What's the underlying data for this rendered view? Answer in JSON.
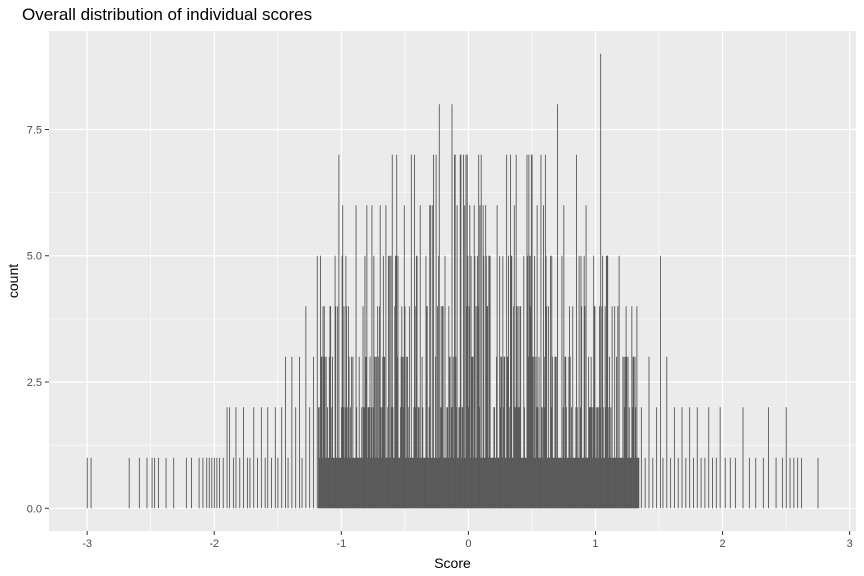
{
  "chart_data": {
    "type": "bar",
    "title": "Overall distribution of individual scores",
    "xlabel": "Score",
    "ylabel": "count",
    "xlim": [
      -3.3,
      3.05
    ],
    "ylim": [
      -0.45,
      9.45
    ],
    "x_ticks": [
      -3,
      -2,
      -1,
      0,
      1,
      2,
      3
    ],
    "x_tick_labels": [
      "-3",
      "-2",
      "-1",
      "0",
      "1",
      "2",
      "3"
    ],
    "y_ticks": [
      0,
      2.5,
      5,
      7.5
    ],
    "y_tick_labels": [
      "0.0",
      "2.5",
      "5.0",
      "7.5"
    ],
    "bin_width": 0.005,
    "grid": true,
    "colors": {
      "panel": "#ebebeb",
      "grid": "#ffffff",
      "bar": "#595959"
    },
    "sparse_bins": {
      "x": [
        -3.0,
        -2.97,
        -2.67,
        -2.59,
        -2.53,
        -2.49,
        -2.47,
        -2.44,
        -2.38,
        -2.32,
        -2.22,
        -2.18,
        -2.12,
        -2.09,
        -2.06,
        -2.04,
        -2.02,
        -2.0,
        -1.98,
        -1.96,
        -1.93,
        -1.9,
        -1.88,
        -1.85,
        -1.83,
        -1.8,
        -1.77,
        -1.74,
        -1.72,
        -1.69,
        -1.66,
        -1.63,
        -1.6,
        -1.58,
        -1.55,
        -1.52,
        -1.5,
        -1.47,
        -1.44,
        -1.42,
        -1.39,
        -1.36,
        -1.33,
        -1.31,
        -1.28,
        -1.25,
        -1.22,
        -1.19
      ],
      "y": [
        1,
        1,
        1,
        1,
        1,
        1,
        1,
        1,
        1,
        1,
        1,
        1,
        1,
        1,
        1,
        1,
        1,
        1,
        1,
        1,
        1,
        2,
        2,
        1,
        2,
        1,
        2,
        1,
        1,
        2,
        1,
        2,
        1,
        2,
        1,
        2,
        1,
        2,
        3,
        1,
        3,
        2,
        3,
        1,
        4,
        2,
        3,
        5
      ]
    },
    "core_range": [
      -1.18,
      1.34
    ],
    "core_envelope": [
      [
        -1.18,
        4.2
      ],
      [
        -1.0,
        5.0
      ],
      [
        -0.8,
        5.6
      ],
      [
        -0.6,
        6.0
      ],
      [
        -0.4,
        6.4
      ],
      [
        -0.2,
        6.8
      ],
      [
        0.0,
        6.9
      ],
      [
        0.2,
        6.8
      ],
      [
        0.4,
        6.5
      ],
      [
        0.6,
        6.2
      ],
      [
        0.8,
        5.6
      ],
      [
        1.0,
        5.0
      ],
      [
        1.2,
        4.1
      ],
      [
        1.34,
        3.6
      ]
    ],
    "peaks": [
      {
        "x": -1.02,
        "y": 7
      },
      {
        "x": -0.99,
        "y": 6
      },
      {
        "x": -0.8,
        "y": 6
      },
      {
        "x": -0.6,
        "y": 7
      },
      {
        "x": -0.45,
        "y": 7
      },
      {
        "x": -0.3,
        "y": 6
      },
      {
        "x": -0.23,
        "y": 8
      },
      {
        "x": -0.13,
        "y": 8
      },
      {
        "x": -0.04,
        "y": 7
      },
      {
        "x": 0.1,
        "y": 7
      },
      {
        "x": 0.3,
        "y": 7
      },
      {
        "x": 0.5,
        "y": 7
      },
      {
        "x": 0.7,
        "y": 8
      },
      {
        "x": 0.85,
        "y": 7
      },
      {
        "x": 1.04,
        "y": 9
      }
    ],
    "right_tail": {
      "x": [
        1.36,
        1.39,
        1.42,
        1.45,
        1.48,
        1.51,
        1.53,
        1.56,
        1.59,
        1.62,
        1.65,
        1.68,
        1.71,
        1.74,
        1.77,
        1.8,
        1.83,
        1.86,
        1.89,
        1.92,
        1.95,
        1.98,
        2.02,
        2.06,
        2.1,
        2.16,
        2.21,
        2.26,
        2.32,
        2.36,
        2.42,
        2.47,
        2.5,
        2.53,
        2.56,
        2.59,
        2.62,
        2.75
      ],
      "y": [
        2,
        1,
        3,
        1,
        2,
        5,
        1,
        3,
        1,
        2,
        1,
        2,
        1,
        2,
        1,
        2,
        1,
        1,
        2,
        1,
        1,
        2,
        1,
        1,
        1,
        2,
        1,
        1,
        1,
        2,
        1,
        1,
        2,
        1,
        1,
        1,
        1,
        1
      ]
    }
  }
}
